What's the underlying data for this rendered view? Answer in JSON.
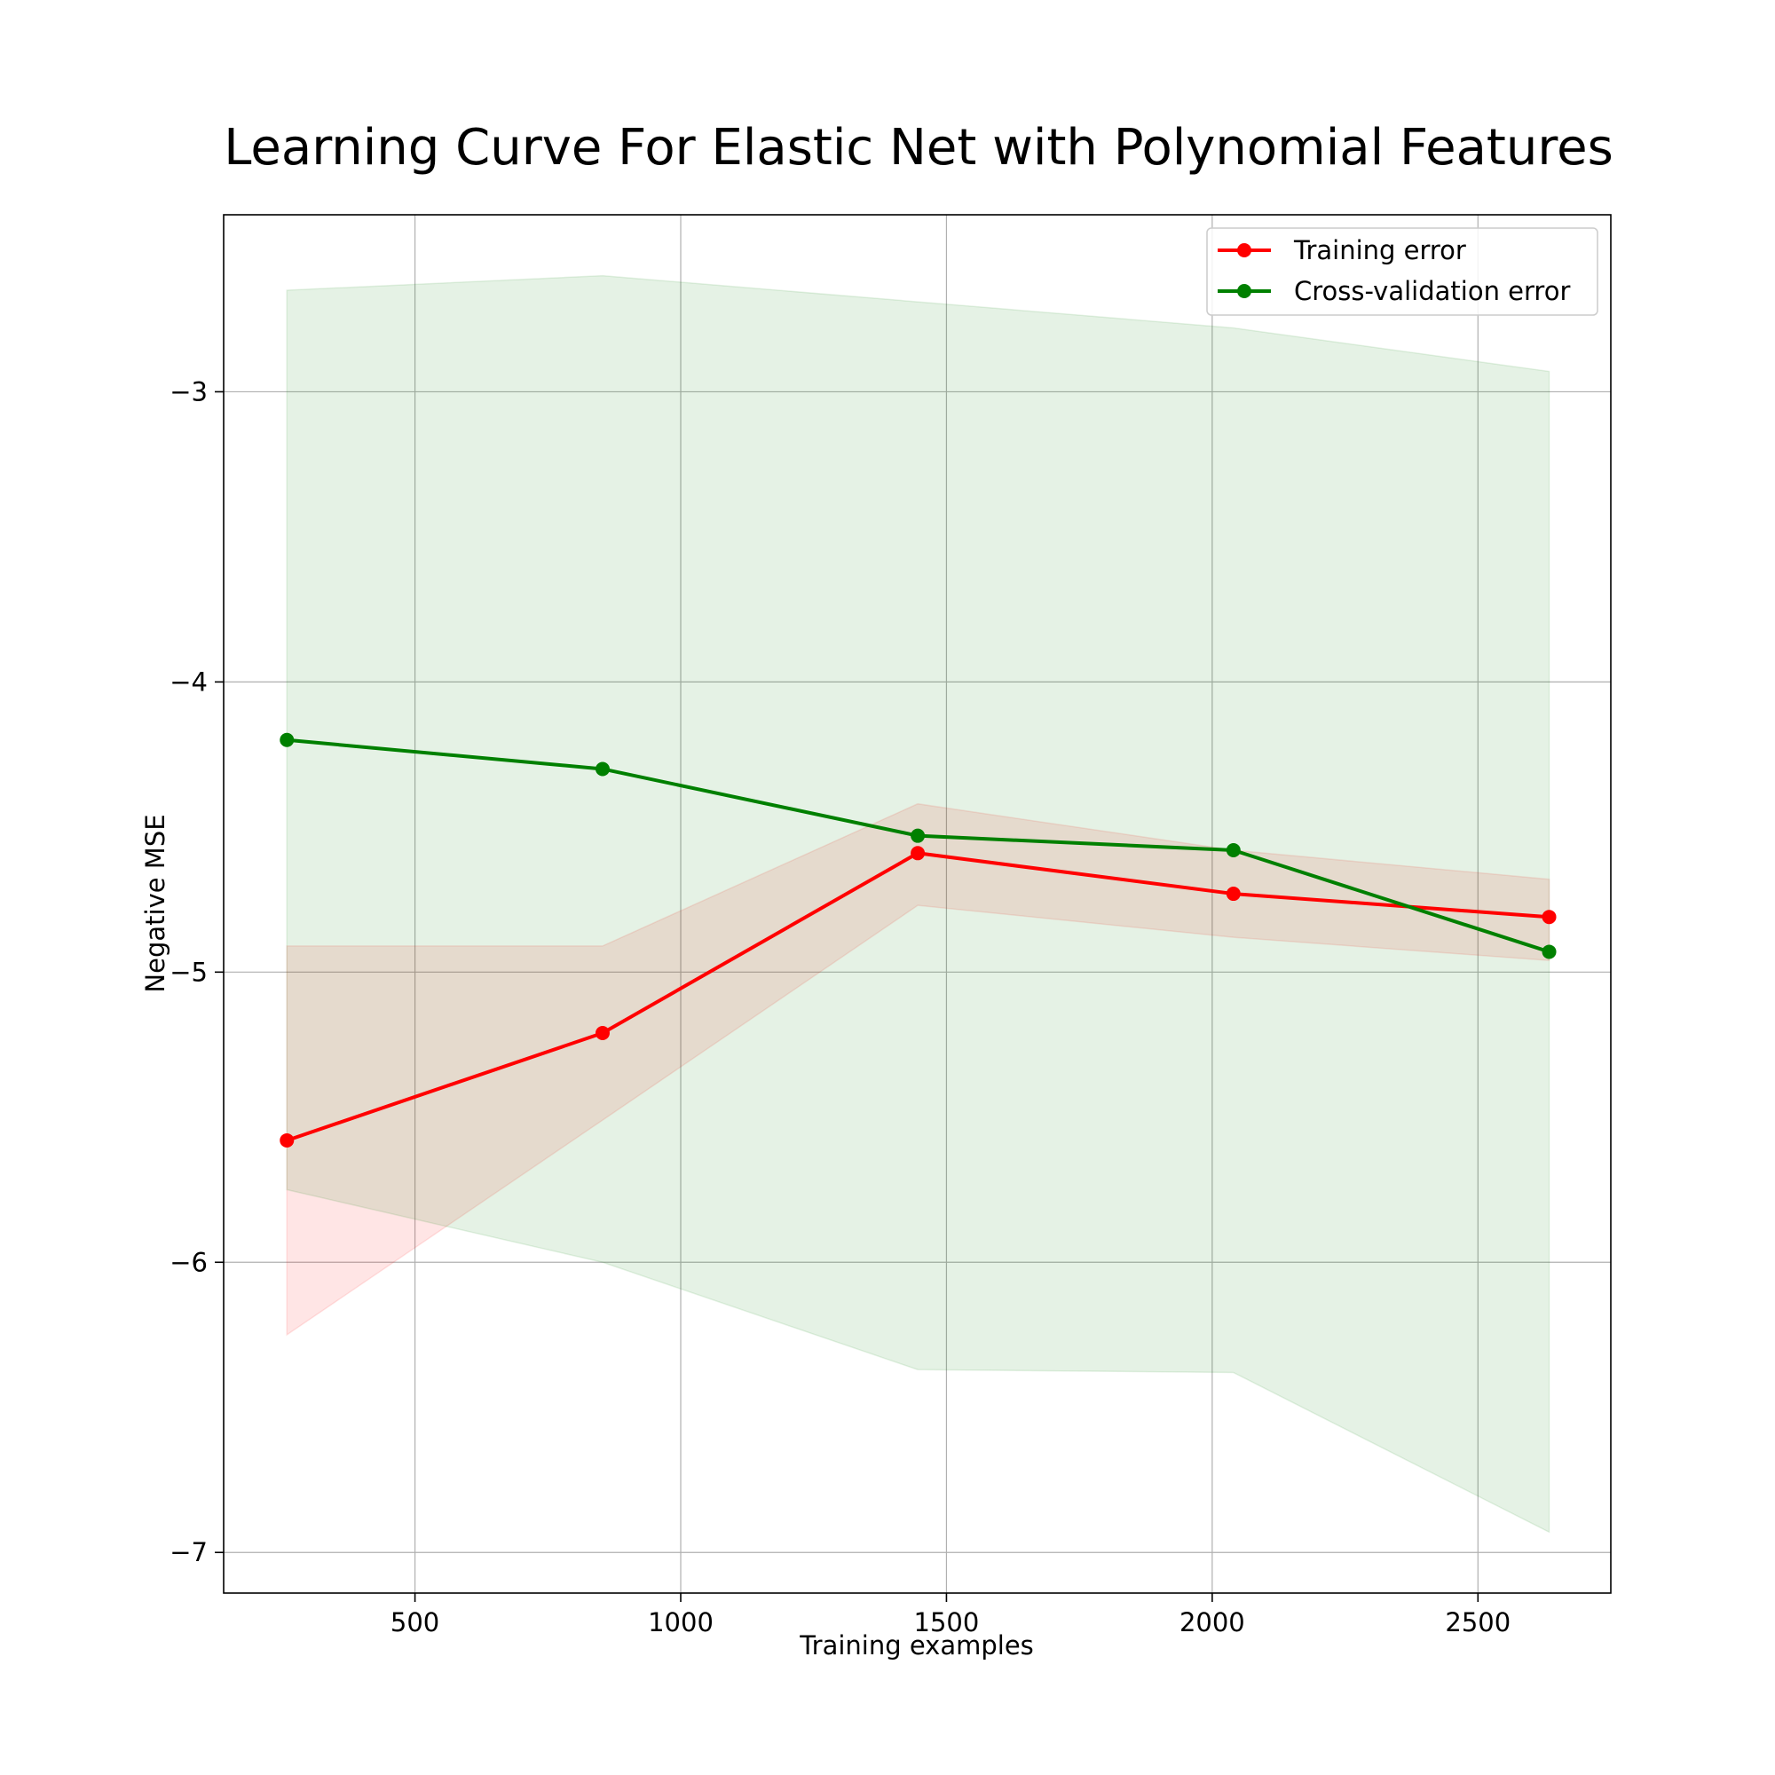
{
  "chart_data": {
    "type": "line",
    "title": "Learning Curve For Elastic Net with Polynomial Features",
    "xlabel": "Training examples",
    "ylabel": "Negative MSE",
    "xlim": [
      140,
      2750
    ],
    "ylim": [
      -7.14,
      -2.39
    ],
    "xticks": [
      500,
      1000,
      1500,
      2000,
      2500
    ],
    "yticks": [
      -3,
      -4,
      -5,
      -6,
      -7
    ],
    "xtick_labels": [
      "500",
      "1000",
      "1500",
      "2000",
      "2500"
    ],
    "ytick_labels": [
      "−3",
      "−4",
      "−5",
      "−6",
      "−7"
    ],
    "grid": true,
    "legend_position": "top-right",
    "x": [
      259,
      853,
      1446,
      2040,
      2634
    ],
    "series": [
      {
        "name": "Training error",
        "color": "#ff0000",
        "band_color": "#ff0000",
        "values": [
          -5.58,
          -5.21,
          -4.59,
          -4.73,
          -4.81
        ],
        "band_upper": [
          -4.91,
          -4.91,
          -4.42,
          -4.58,
          -4.68
        ],
        "band_lower": [
          -6.25,
          -5.51,
          -4.77,
          -4.88,
          -4.96
        ]
      },
      {
        "name": "Cross-validation error",
        "color": "#008000",
        "band_color": "#008000",
        "values": [
          -4.2,
          -4.3,
          -4.53,
          -4.58,
          -4.93
        ],
        "band_upper": [
          -2.65,
          -2.6,
          -2.69,
          -2.78,
          -2.93
        ],
        "band_lower": [
          -5.75,
          -6.0,
          -6.37,
          -6.38,
          -6.93
        ]
      }
    ]
  }
}
